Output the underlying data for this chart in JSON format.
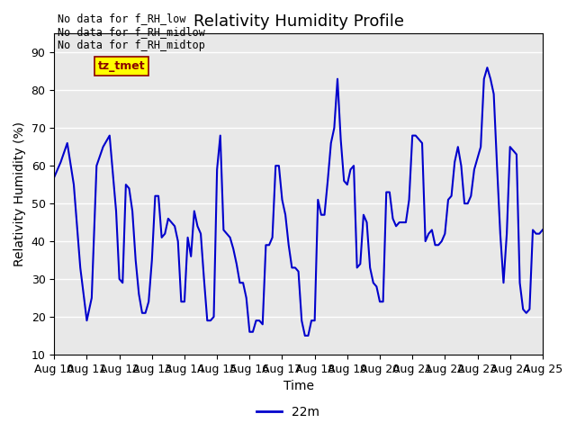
{
  "title": "Relativity Humidity Profile",
  "xlabel": "Time",
  "ylabel": "Relativity Humidity (%)",
  "ylim": [
    10,
    95
  ],
  "yticks": [
    10,
    20,
    30,
    40,
    50,
    60,
    70,
    80,
    90
  ],
  "line_color": "#0000CC",
  "line_width": 1.5,
  "legend_label": "22m",
  "legend_color": "#0000CC",
  "bg_color": "#E8E8E8",
  "annotations": [
    "No data for f_RH_low",
    "No data for f_RH_midlow",
    "No data for f_RH_midtop"
  ],
  "tz_tmet_label": "tz_tmet",
  "xtick_labels": [
    "Aug 10",
    "Aug 11",
    "Aug 12",
    "Aug 13",
    "Aug 14",
    "Aug 15",
    "Aug 16",
    "Aug 17",
    "Aug 18",
    "Aug 19",
    "Aug 20",
    "Aug 21",
    "Aug 22",
    "Aug 23",
    "Aug 24",
    "Aug 25"
  ],
  "data_x": [
    0.0,
    0.2,
    0.4,
    0.6,
    0.8,
    1.0,
    1.15,
    1.3,
    1.5,
    1.7,
    1.9,
    2.0,
    2.1,
    2.2,
    2.3,
    2.4,
    2.5,
    2.6,
    2.7,
    2.8,
    2.9,
    3.0,
    3.1,
    3.2,
    3.3,
    3.4,
    3.5,
    3.6,
    3.7,
    3.8,
    3.9,
    4.0,
    4.1,
    4.2,
    4.3,
    4.4,
    4.5,
    4.6,
    4.7,
    4.8,
    4.9,
    5.0,
    5.1,
    5.2,
    5.3,
    5.4,
    5.5,
    5.6,
    5.7,
    5.8,
    5.9,
    6.0,
    6.1,
    6.2,
    6.3,
    6.4,
    6.5,
    6.6,
    6.7,
    6.8,
    6.9,
    7.0,
    7.1,
    7.2,
    7.3,
    7.4,
    7.5,
    7.6,
    7.7,
    7.8,
    7.9,
    8.0,
    8.1,
    8.2,
    8.3,
    8.4,
    8.5,
    8.6,
    8.7,
    8.8,
    8.9,
    9.0,
    9.1,
    9.2,
    9.3,
    9.4,
    9.5,
    9.6,
    9.7,
    9.8,
    9.9,
    10.0,
    10.1,
    10.2,
    10.3,
    10.4,
    10.5,
    10.6,
    10.7,
    10.8,
    10.9,
    11.0,
    11.1,
    11.2,
    11.3,
    11.4,
    11.5,
    11.6,
    11.7,
    11.8,
    11.9,
    12.0,
    12.1,
    12.2,
    12.3,
    12.4,
    12.5,
    12.6,
    12.7,
    12.8,
    12.9,
    13.0,
    13.1,
    13.2,
    13.3,
    13.4,
    13.5,
    13.6,
    13.7,
    13.8,
    13.9,
    14.0,
    14.1,
    14.2,
    14.3,
    14.4,
    14.5,
    14.6,
    14.7,
    14.8,
    14.9,
    15.0
  ],
  "data_y": [
    57,
    61,
    66,
    55,
    33,
    19,
    25,
    60,
    65,
    68,
    48,
    30,
    29,
    55,
    54,
    48,
    35,
    26,
    21,
    21,
    24,
    35,
    52,
    52,
    41,
    42,
    46,
    45,
    44,
    40,
    24,
    24,
    41,
    36,
    48,
    44,
    42,
    30,
    19,
    19,
    20,
    59,
    68,
    43,
    42,
    41,
    38,
    34,
    29,
    29,
    25,
    16,
    16,
    19,
    19,
    18,
    39,
    39,
    41,
    60,
    60,
    51,
    47,
    39,
    33,
    33,
    32,
    19,
    15,
    15,
    19,
    19,
    51,
    47,
    47,
    56,
    66,
    70,
    83,
    67,
    56,
    55,
    59,
    60,
    33,
    34,
    47,
    45,
    33,
    29,
    28,
    24,
    24,
    53,
    53,
    46,
    44,
    45,
    45,
    45,
    51,
    68,
    68,
    67,
    66,
    40,
    42,
    43,
    39,
    39,
    40,
    42,
    51,
    52,
    61,
    65,
    60,
    50,
    50,
    52,
    59,
    62,
    65,
    83,
    86,
    83,
    79,
    60,
    42,
    29,
    42,
    65,
    64,
    63,
    29,
    22,
    21,
    22,
    43,
    42,
    42,
    43,
    42,
    43,
    43,
    42
  ]
}
